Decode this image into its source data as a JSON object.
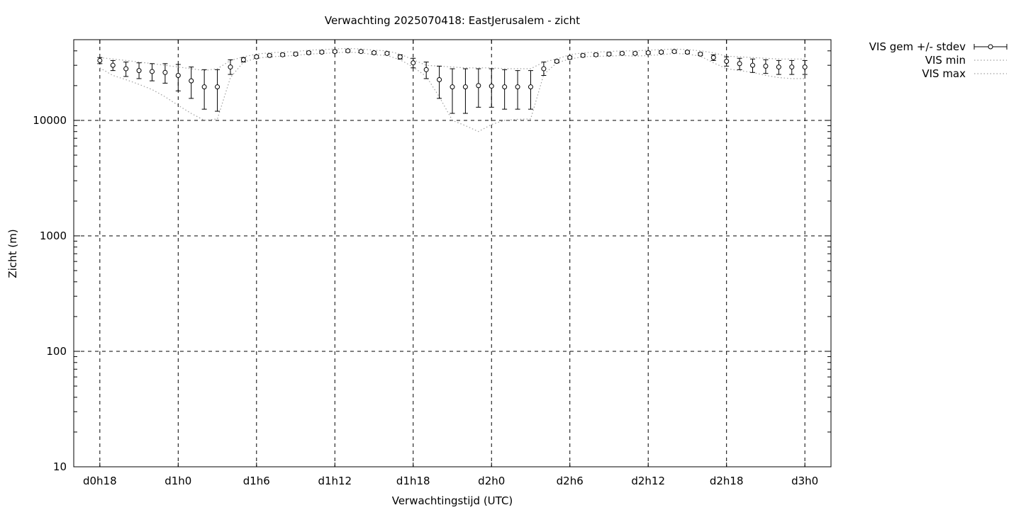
{
  "chart_data": {
    "type": "line",
    "title": "Verwachting 2025070418: EastJerusalem - zicht",
    "xlabel": "Verwachtingstijd (UTC)",
    "ylabel": "Zicht (m)",
    "yscale": "log",
    "ylim": [
      10,
      50000
    ],
    "xlim": [
      -2,
      56
    ],
    "grid": true,
    "legend_position": "top-right",
    "x_ticks": [
      {
        "value": 0,
        "label": "d0h18"
      },
      {
        "value": 6,
        "label": "d1h0"
      },
      {
        "value": 12,
        "label": "d1h6"
      },
      {
        "value": 18,
        "label": "d1h12"
      },
      {
        "value": 24,
        "label": "d1h18"
      },
      {
        "value": 30,
        "label": "d2h0"
      },
      {
        "value": 36,
        "label": "d2h6"
      },
      {
        "value": 42,
        "label": "d2h12"
      },
      {
        "value": 48,
        "label": "d2h18"
      },
      {
        "value": 54,
        "label": "d3h0"
      }
    ],
    "y_ticks": [
      {
        "value": 10,
        "label": "10"
      },
      {
        "value": 100,
        "label": "100"
      },
      {
        "value": 1000,
        "label": "1000"
      },
      {
        "value": 10000,
        "label": "10000"
      }
    ],
    "x": [
      0,
      1,
      2,
      3,
      4,
      5,
      6,
      7,
      8,
      9,
      10,
      11,
      12,
      13,
      14,
      15,
      16,
      17,
      18,
      19,
      20,
      21,
      22,
      23,
      24,
      25,
      26,
      27,
      28,
      29,
      30,
      31,
      32,
      33,
      34,
      35,
      36,
      37,
      38,
      39,
      40,
      41,
      42,
      43,
      44,
      45,
      46,
      47,
      48,
      49,
      50,
      51,
      52,
      53,
      54
    ],
    "series": [
      {
        "name": "VIS gem +/- stdev",
        "style": "errorbars",
        "mean": [
          33000,
          30000,
          28000,
          27000,
          26500,
          26000,
          24500,
          22000,
          19500,
          19500,
          29000,
          33500,
          35500,
          36500,
          37000,
          37500,
          38500,
          39000,
          39500,
          40000,
          39500,
          38500,
          38000,
          35500,
          31500,
          27500,
          22500,
          19500,
          19500,
          20000,
          19800,
          19500,
          19500,
          19500,
          28000,
          32500,
          35000,
          36500,
          37000,
          37500,
          38000,
          38000,
          38500,
          39000,
          39500,
          39000,
          37500,
          35000,
          32500,
          31000,
          30000,
          29500,
          29000,
          29000,
          29000
        ],
        "lower": [
          31000,
          27000,
          24000,
          23000,
          22000,
          21000,
          18000,
          15500,
          12500,
          12000,
          25000,
          32000,
          34500,
          35500,
          36000,
          36500,
          37500,
          38000,
          38500,
          39000,
          38500,
          37500,
          37000,
          34000,
          28500,
          23000,
          15500,
          11500,
          11500,
          13000,
          13000,
          12500,
          12500,
          12500,
          24500,
          31500,
          34000,
          35500,
          36000,
          36500,
          37000,
          37000,
          37500,
          38000,
          38500,
          38000,
          36500,
          33000,
          29500,
          27500,
          26000,
          25500,
          25000,
          25000,
          25000
        ],
        "upper": [
          35000,
          33000,
          32000,
          31500,
          31000,
          31000,
          30500,
          29000,
          27500,
          27500,
          33500,
          35000,
          36500,
          37500,
          38000,
          38500,
          39500,
          40000,
          40500,
          41000,
          40500,
          39500,
          39000,
          37000,
          34500,
          32000,
          29500,
          28000,
          28000,
          28000,
          28000,
          27500,
          27000,
          27000,
          32000,
          33500,
          36000,
          37500,
          38000,
          38500,
          39000,
          39000,
          39500,
          40000,
          40500,
          40000,
          38500,
          37000,
          35500,
          34500,
          34000,
          33500,
          33000,
          33000,
          33000
        ]
      },
      {
        "name": "VIS min",
        "style": "dotted",
        "values": [
          28500,
          24500,
          22500,
          20500,
          18500,
          16000,
          13500,
          11500,
          10000,
          10300,
          23500,
          32000,
          34500,
          35500,
          36000,
          36500,
          37500,
          38000,
          38500,
          39000,
          38500,
          37000,
          36500,
          33500,
          29000,
          24000,
          16000,
          10000,
          9000,
          8000,
          9200,
          10000,
          10200,
          10300,
          25000,
          31500,
          34000,
          35500,
          36000,
          36000,
          36500,
          36000,
          36500,
          37000,
          38000,
          37500,
          36000,
          31500,
          28000,
          27000,
          26000,
          24500,
          23500,
          23000,
          23000
        ]
      },
      {
        "name": "VIS max",
        "style": "dotted",
        "values": [
          35000,
          34000,
          33000,
          32000,
          31000,
          30000,
          29000,
          28000,
          27000,
          28000,
          33000,
          35500,
          37500,
          38500,
          39000,
          39500,
          40500,
          41000,
          41500,
          42000,
          41500,
          40500,
          40000,
          37500,
          33500,
          30000,
          29500,
          29000,
          28500,
          28500,
          28500,
          28000,
          28000,
          28000,
          32000,
          34000,
          37000,
          38500,
          39000,
          39500,
          40000,
          40000,
          40500,
          41000,
          41500,
          41000,
          40000,
          38500,
          36000,
          35500,
          35000,
          34500,
          34000,
          34000,
          34000
        ]
      }
    ]
  }
}
